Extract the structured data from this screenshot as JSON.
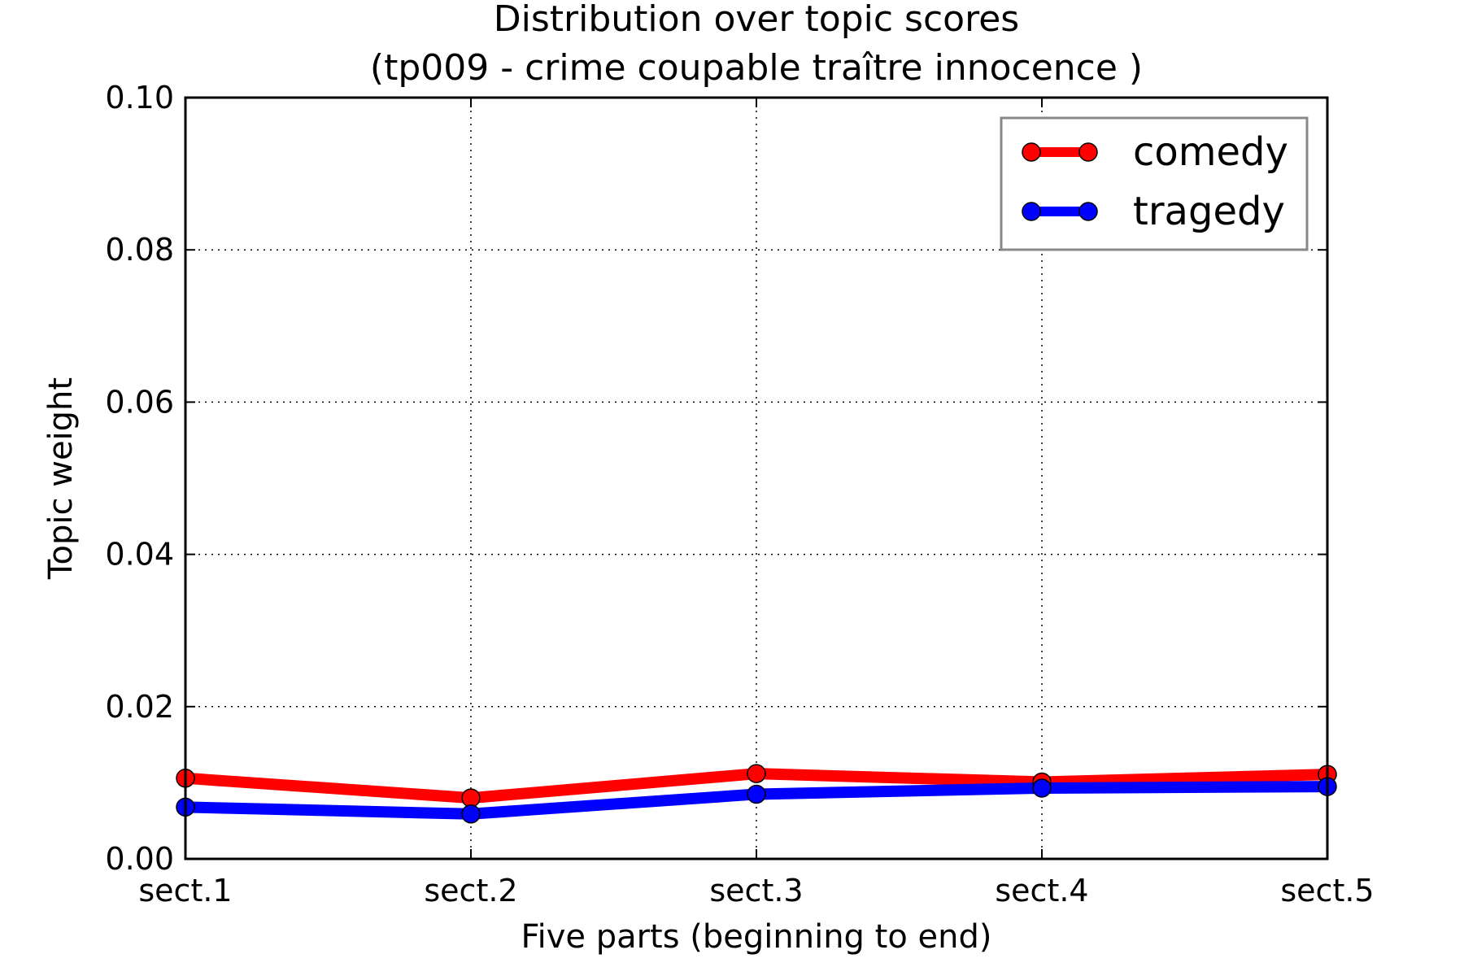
{
  "chart_data": {
    "type": "line",
    "title_line1": "Distribution over topic scores",
    "title_line2": "(tp009 - crime coupable traître innocence )",
    "xlabel": "Five parts (beginning to end)",
    "ylabel": "Topic weight",
    "categories": [
      "sect.1",
      "sect.2",
      "sect.3",
      "sect.4",
      "sect.5"
    ],
    "ylim": [
      0,
      0.1
    ],
    "yticks": [
      "0.00",
      "0.02",
      "0.04",
      "0.06",
      "0.08",
      "0.10"
    ],
    "ytick_values": [
      0,
      0.02,
      0.04,
      0.06,
      0.08,
      0.1
    ],
    "grid": true,
    "grid_style": "dotted",
    "legend_position": "top-right",
    "series": [
      {
        "name": "comedy",
        "color": "#ff0000",
        "values": [
          0.0106,
          0.008,
          0.0112,
          0.0101,
          0.0111
        ]
      },
      {
        "name": "tragedy",
        "color": "#0000ff",
        "values": [
          0.0068,
          0.0059,
          0.0085,
          0.0093,
          0.0095
        ]
      }
    ]
  }
}
